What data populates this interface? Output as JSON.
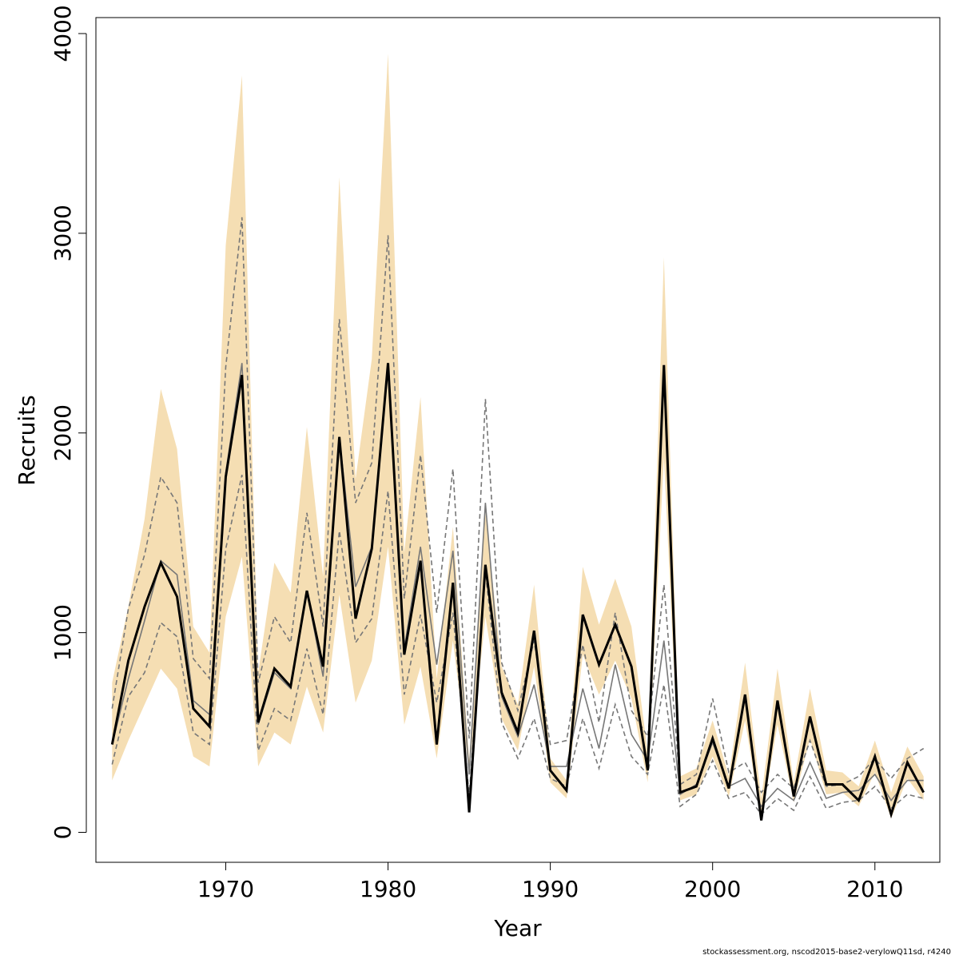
{
  "chart_data": {
    "type": "line",
    "xlabel": "Year",
    "ylabel": "Recruits",
    "xlim": [
      1962,
      2014
    ],
    "ylim": [
      -150,
      4080
    ],
    "x_ticks": [
      1970,
      1980,
      1990,
      2000,
      2010
    ],
    "y_ticks": [
      0,
      1000,
      2000,
      3000,
      4000
    ],
    "grid": false,
    "colors": {
      "band": "#f5deb3",
      "main_line": "#000000",
      "alt_line": "#777777",
      "alt_dashed": "#777777"
    },
    "x": [
      1963,
      1964,
      1965,
      1966,
      1967,
      1968,
      1969,
      1970,
      1971,
      1972,
      1973,
      1974,
      1975,
      1976,
      1977,
      1978,
      1979,
      1980,
      1981,
      1982,
      1983,
      1984,
      1985,
      1986,
      1987,
      1988,
      1989,
      1990,
      1991,
      1992,
      1993,
      1994,
      1995,
      1996,
      1997,
      1998,
      1999,
      2000,
      2001,
      2002,
      2003,
      2004,
      2005,
      2006,
      2007,
      2008,
      2009,
      2010,
      2011,
      2012,
      2013
    ],
    "series": [
      {
        "role": "estimate",
        "style": "solid-thick-black",
        "values": [
          440,
          860,
          1130,
          1350,
          1180,
          620,
          530,
          1780,
          2290,
          550,
          820,
          730,
          1210,
          830,
          1980,
          1070,
          1420,
          2350,
          890,
          1360,
          440,
          1250,
          100,
          1340,
          700,
          500,
          1010,
          310,
          210,
          1090,
          840,
          1040,
          830,
          310,
          2340,
          200,
          230,
          470,
          220,
          690,
          60,
          660,
          180,
          580,
          240,
          240,
          160,
          380,
          90,
          350,
          200
        ]
      },
      {
        "role": "estimate_upper",
        "style": "band",
        "values": [
          750,
          1130,
          1570,
          2220,
          1920,
          1030,
          900,
          2940,
          3790,
          800,
          1350,
          1200,
          2030,
          1280,
          3280,
          1770,
          2370,
          3900,
          1400,
          2180,
          770,
          1530,
          360,
          1600,
          830,
          640,
          1240,
          370,
          260,
          1330,
          1040,
          1270,
          1030,
          400,
          2880,
          280,
          320,
          560,
          280,
          850,
          170,
          820,
          250,
          720,
          310,
          300,
          230,
          460,
          200,
          430,
          280
        ]
      },
      {
        "role": "estimate_lower",
        "style": "band",
        "values": [
          260,
          460,
          640,
          820,
          720,
          380,
          330,
          1080,
          1380,
          330,
          500,
          440,
          730,
          500,
          1190,
          650,
          860,
          1430,
          540,
          830,
          370,
          960,
          300,
          1080,
          570,
          410,
          830,
          250,
          170,
          890,
          690,
          860,
          670,
          250,
          1880,
          160,
          190,
          380,
          180,
          560,
          60,
          540,
          150,
          470,
          190,
          200,
          130,
          300,
          70,
          270,
          160
        ]
      },
      {
        "role": "alternative_run",
        "style": "solid-thin-grey",
        "values": [
          440,
          770,
          1060,
          1360,
          1290,
          660,
          590,
          1800,
          2350,
          540,
          800,
          720,
          1210,
          780,
          1980,
          1230,
          1430,
          2330,
          920,
          1430,
          840,
          1410,
          290,
          1650,
          680,
          480,
          740,
          330,
          330,
          720,
          420,
          840,
          490,
          360,
          960,
          190,
          240,
          450,
          230,
          270,
          130,
          220,
          160,
          350,
          170,
          200,
          210,
          290,
          160,
          260,
          260
        ]
      },
      {
        "role": "alternative_upper",
        "style": "dashed-grey",
        "values": [
          620,
          1120,
          1390,
          1780,
          1650,
          870,
          770,
          2330,
          3080,
          750,
          1080,
          950,
          1600,
          1030,
          2570,
          1650,
          1850,
          2990,
          1170,
          1890,
          1100,
          1820,
          470,
          2170,
          850,
          610,
          960,
          440,
          460,
          940,
          550,
          1100,
          610,
          480,
          1240,
          240,
          290,
          670,
          300,
          350,
          200,
          290,
          220,
          460,
          230,
          240,
          280,
          370,
          270,
          370,
          420
        ]
      },
      {
        "role": "alternative_lower",
        "style": "dashed-grey",
        "values": [
          340,
          680,
          800,
          1050,
          980,
          500,
          440,
          1420,
          1790,
          410,
          620,
          560,
          920,
          590,
          1510,
          950,
          1070,
          1710,
          690,
          1090,
          650,
          1100,
          180,
          1310,
          550,
          370,
          570,
          270,
          230,
          570,
          320,
          640,
          380,
          290,
          740,
          130,
          190,
          360,
          170,
          200,
          90,
          170,
          110,
          280,
          120,
          150,
          160,
          230,
          120,
          190,
          170
        ]
      }
    ]
  },
  "footer": {
    "text": "stockassessment.org, nscod2015-base2-verylowQ11sd, r4240"
  }
}
